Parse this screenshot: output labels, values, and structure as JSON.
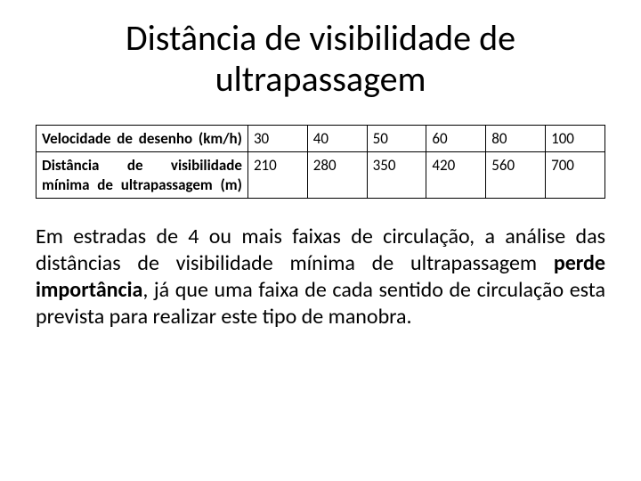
{
  "title": "Distância de visibilidade de ultrapassagem",
  "table": {
    "row1_label": "Velocidade de desenho (km/h)",
    "row1": [
      "30",
      "40",
      "50",
      "60",
      "80",
      "100"
    ],
    "row2_label": "Distância de visibilidade mínima de ultrapassagem (m)",
    "row2": [
      "210",
      "280",
      "350",
      "420",
      "560",
      "700"
    ]
  },
  "paragraph": {
    "part1": "Em estradas de 4 ou mais faixas de circulação, a análise das distâncias de visibilidade mínima de ultrapassagem ",
    "bold": "perde importância",
    "part2": ", já que uma faixa de cada sentido de circulação esta prevista para realizar este tipo de manobra."
  },
  "style": {
    "background_color": "#ffffff",
    "text_color": "#000000",
    "title_fontsize": 40,
    "table_fontsize": 17,
    "body_fontsize": 24,
    "border_color": "#000000"
  }
}
